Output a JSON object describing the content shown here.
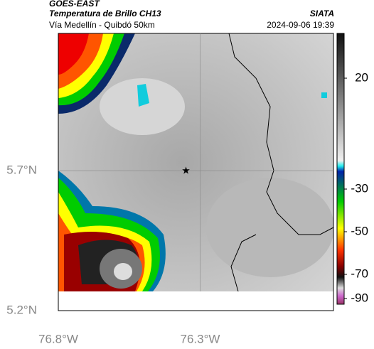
{
  "header": {
    "source": "GOES-EAST",
    "title": "Temperatura de Brillo CH13",
    "subtitle": "Vía Medellín - Quibdó 50km",
    "brand": "SIATA",
    "datetime": "2024-09-06 19:39"
  },
  "map": {
    "xlim": [
      -76.8,
      -75.83
    ],
    "ylim": [
      5.2,
      6.19
    ],
    "xticks": [
      {
        "value": -76.8,
        "label": "76.8°W"
      },
      {
        "value": -76.3,
        "label": "76.3°W"
      }
    ],
    "yticks": [
      {
        "value": 5.2,
        "label": "5.2°N"
      },
      {
        "value": 5.7,
        "label": "5.7°N"
      }
    ],
    "grid": true,
    "marker": {
      "lon": -76.35,
      "lat": 5.7
    }
  },
  "colorbar": {
    "ticks": [
      20,
      -30,
      -50,
      -70,
      -90
    ]
  }
}
